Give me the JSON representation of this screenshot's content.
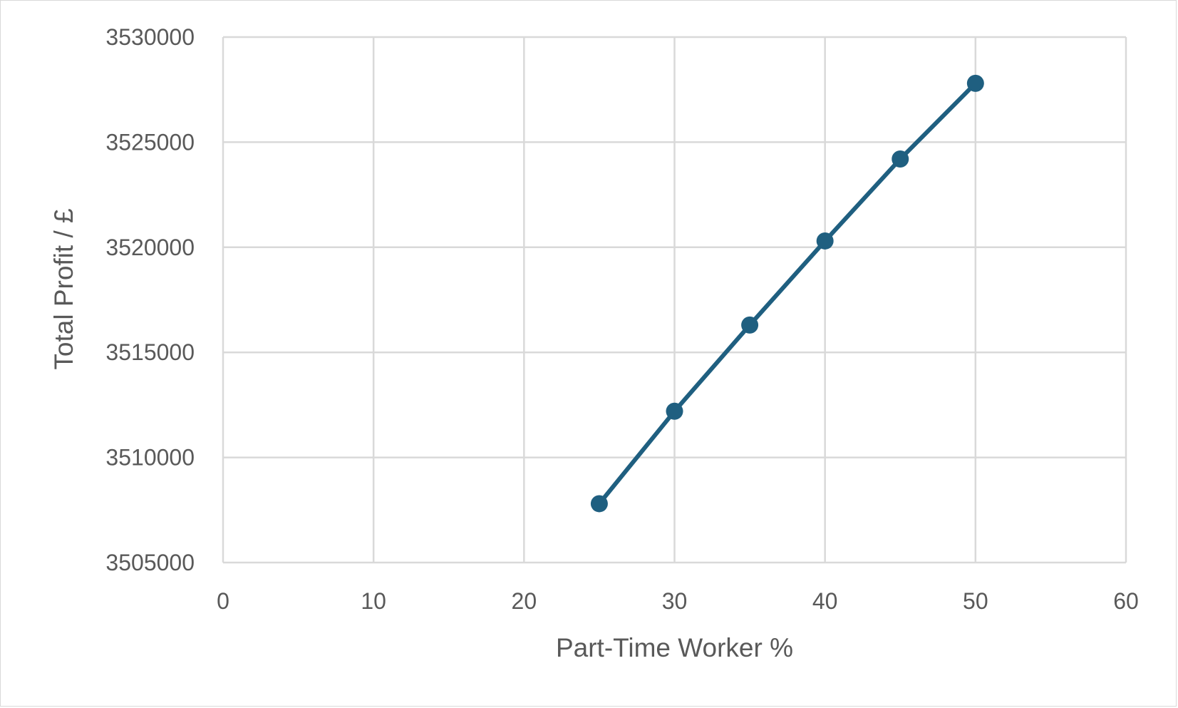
{
  "chart_data": {
    "type": "scatter",
    "title": "",
    "xlabel": "Part-Time Worker %",
    "ylabel": "Total Profit / £",
    "xlim": [
      0,
      60
    ],
    "ylim": [
      3505000,
      3530000
    ],
    "x_ticks": [
      0,
      10,
      20,
      30,
      40,
      50,
      60
    ],
    "y_ticks": [
      3505000,
      3510000,
      3515000,
      3520000,
      3525000,
      3530000
    ],
    "x_tick_labels": [
      "0",
      "10",
      "20",
      "30",
      "40",
      "50",
      "60"
    ],
    "y_tick_labels": [
      "3505000",
      "3510000",
      "3515000",
      "3520000",
      "3525000",
      "3530000"
    ],
    "grid": true,
    "line_connected": true,
    "markers": true,
    "series": [
      {
        "color": "#1f5f80",
        "x": [
          25,
          30,
          35,
          40,
          45,
          50
        ],
        "y": [
          3507800,
          3512200,
          3516300,
          3520300,
          3524200,
          3527800
        ]
      }
    ]
  }
}
